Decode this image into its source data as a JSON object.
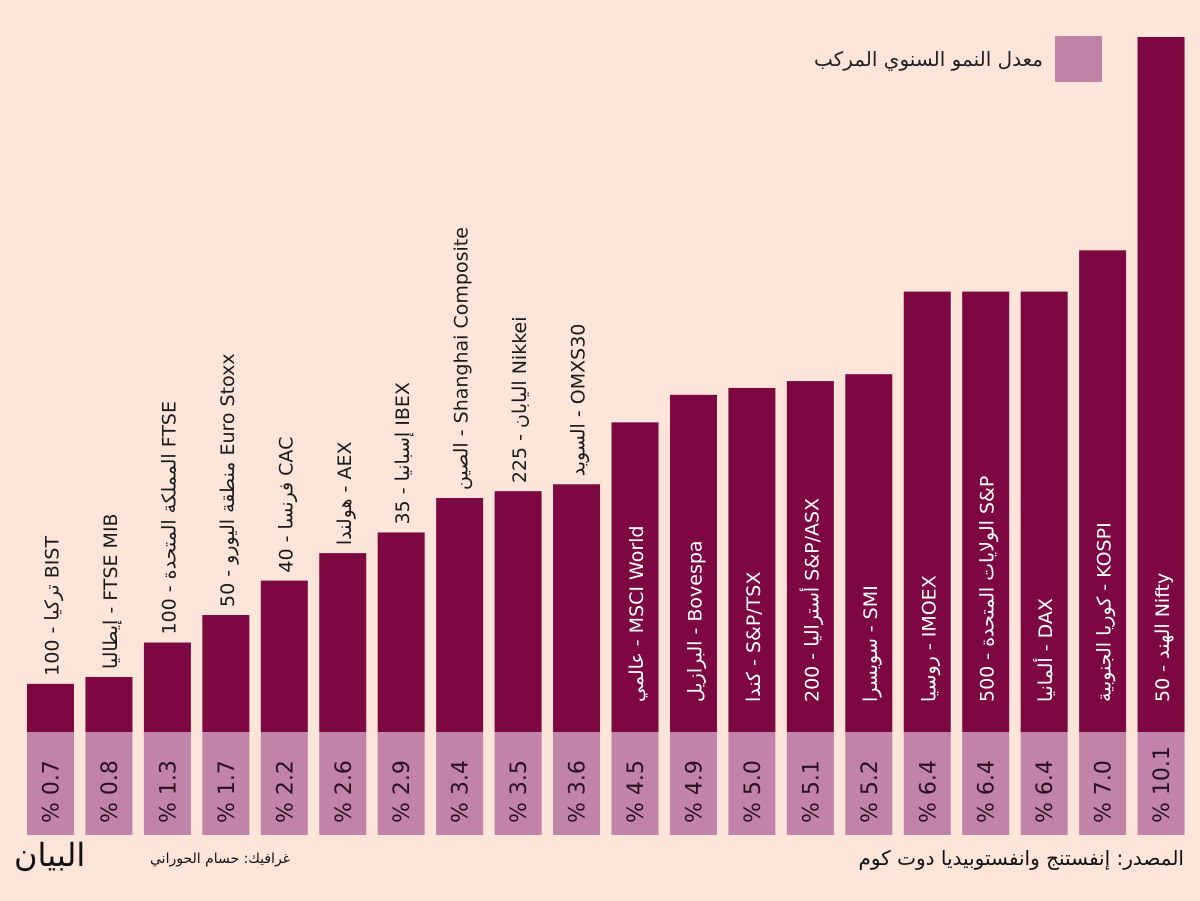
{
  "chart_data": {
    "type": "bar",
    "title": "",
    "legend": [
      "معدل النمو السنوي المركب"
    ],
    "legend_position": "top-right",
    "value_format": "% {v}",
    "categories": [
      "تركيا - 100 BIST",
      "إيطاليا - FTSE MIB",
      "المملكة المتحدة - 100 FTSE",
      "منطقة اليورو - 50 Euro Stoxx",
      "فرنسا - 40 CAC",
      "هولندا - AEX",
      "إسبانيا - 35 IBEX",
      "الصين - Shanghai Composite",
      "اليابان - 225 Nikkei",
      "السويد - OMXS30",
      "عالمي - MSCI World",
      "البرازيل - Bovespa",
      "كندا - S&P/TSX",
      "أستراليا - 200 S&P/ASX",
      "سويسرا - SMI",
      "روسيا - IMOEX",
      "الولايات المتحدة - 500 S&P",
      "ألمانيا - DAX",
      "كوريا الجنوبية - KOSPI",
      "الهند - 50 Nifty"
    ],
    "values": [
      0.7,
      0.8,
      1.3,
      1.7,
      2.2,
      2.6,
      2.9,
      3.4,
      3.5,
      3.6,
      4.5,
      4.9,
      5.0,
      5.1,
      5.2,
      6.4,
      6.4,
      6.4,
      7.0,
      10.1
    ],
    "value_labels": [
      "% 0.7",
      "% 0.8",
      "% 1.3",
      "% 1.7",
      "% 2.2",
      "% 2.6",
      "% 2.9",
      "% 3.4",
      "% 3.5",
      "% 3.6",
      "% 4.5",
      "% 4.9",
      "% 5.0",
      "% 5.1",
      "% 5.2",
      "% 6.4",
      "% 6.4",
      "% 6.4",
      "% 7.0",
      "% 10.1"
    ],
    "xlabel": "",
    "ylabel": "",
    "ylim": [
      0,
      10.1
    ],
    "grid": false
  },
  "colors": {
    "bar": "#7d0741",
    "value_band": "#c184a8",
    "background": "#fde5da"
  },
  "legend_label": "معدل النمو السنوي المركب",
  "source": "المصدر: إنفستنج وانفستوبيديا دوت كوم",
  "credit": "غرافيك: حسام الحوراني",
  "logo": "البيان"
}
